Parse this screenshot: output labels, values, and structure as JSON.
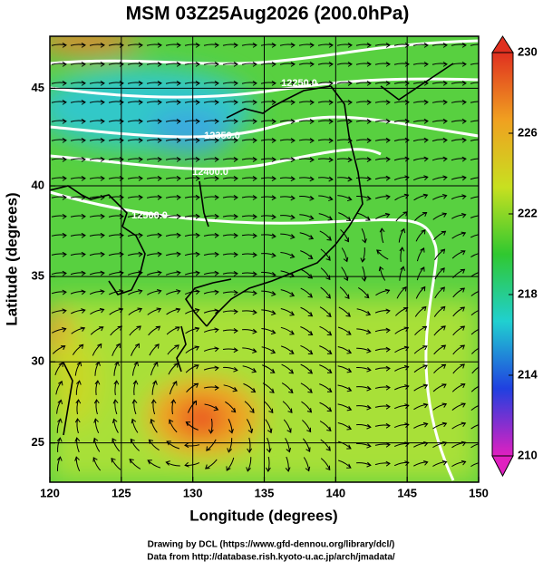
{
  "chart_data": {
    "type": "streamline_map",
    "title": "MSM 03Z25Aug2026 (200.0hPa)",
    "x_label": "Longitude (degrees)",
    "y_label": "Latitude  (degrees)",
    "projection": "mercator",
    "xlim": [
      120,
      150
    ],
    "xticks": [
      120,
      125,
      130,
      135,
      140,
      145,
      150
    ],
    "ylim": [
      22.5,
      47.5
    ],
    "yticks": [
      25,
      30,
      35,
      40,
      45
    ],
    "grid": true,
    "colorbar": {
      "clim": [
        210,
        230
      ],
      "cticks": [
        210,
        214,
        218,
        222,
        226,
        230
      ],
      "colors": [
        "#e020c0",
        "#2040e0",
        "#20d0d0",
        "#30c830",
        "#c8e020",
        "#f0a020",
        "#e03020"
      ]
    },
    "contour_labels": [
      "12250.0",
      "12350.0",
      "12400.0",
      "12500.0"
    ],
    "credits": [
      "Drawing by DCL (https://www.gfd-dennou.org/library/dcl/)",
      "Data from http://database.rish.kyoto-u.ac.jp/arch/jmadata/"
    ]
  }
}
